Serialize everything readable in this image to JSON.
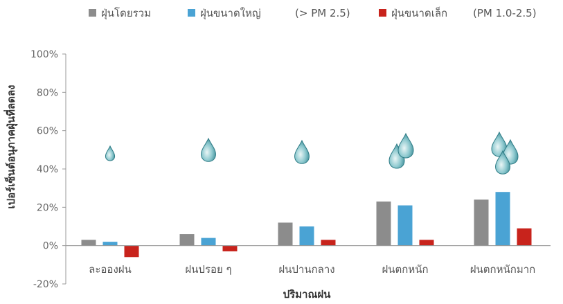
{
  "chart_data": {
    "type": "bar",
    "xlabel": "ปริมาณฝน",
    "ylabel": "เปอร์เซ็นต์อนุภาคฝุ่นที่ลดลง",
    "ylim": [
      -20,
      100
    ],
    "yticks": [
      100,
      80,
      60,
      40,
      20,
      0,
      -20
    ],
    "ytick_labels": [
      "100%",
      "80%",
      "60%",
      "40%",
      "20%",
      "0%",
      "-20%"
    ],
    "categories": [
      "ละอองฝน",
      "ฝนปรอย ๆ",
      "ฝนปานกลาง",
      "ฝนตกหนัก",
      "ฝนตกหนักมาก"
    ],
    "series": [
      {
        "name": "ฝุ่นโดยรวม",
        "color": "#8c8c8c",
        "values": [
          3,
          6,
          12,
          23,
          24
        ]
      },
      {
        "name": "ฝุ่นขนาดใหญ่",
        "name_suffix": "(> PM 2.5)",
        "color": "#4aa3d4",
        "values": [
          2,
          4,
          10,
          21,
          28
        ]
      },
      {
        "name": "ฝุ่นขนาดเล็ก",
        "name_suffix": "(PM 1.0-2.5)",
        "color": "#c8231c",
        "values": [
          -6,
          -3,
          3,
          3,
          9
        ]
      }
    ],
    "legend_position": "top",
    "grid": false,
    "rain_drops_per_category": [
      1,
      1,
      1,
      2,
      3
    ]
  }
}
